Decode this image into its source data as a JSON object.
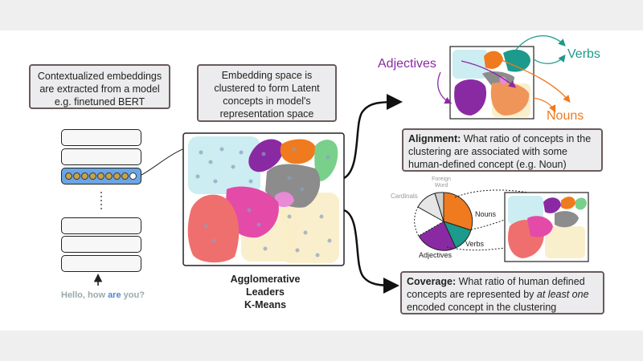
{
  "left_box": {
    "line1": "Contextualized embeddings",
    "line2": "are extracted from a model",
    "line3": "e.g. finetuned BERT"
  },
  "input": {
    "before": "Hello, how ",
    "highlight": "are",
    "after": " you?"
  },
  "middle_box": {
    "line1": "Embedding space is",
    "line2": "clustered to form Latent",
    "line3": "concepts in model's",
    "line4": "representation space"
  },
  "algorithms": [
    "Agglomerative",
    "Leaders",
    "K-Means"
  ],
  "top_labels": {
    "adjectives": "Adjectives",
    "verbs": "Verbs",
    "nouns": "Nouns"
  },
  "alignment": {
    "title": "Alignment:",
    "text": " What ratio of concepts in the clustering are associated with some human-defined concept (e.g. Noun)"
  },
  "pie": {
    "labels": [
      "Foreign Word",
      "Cardinals",
      "Nouns",
      "Verbs",
      "Adjectives"
    ]
  },
  "coverage": {
    "title": "Coverage:",
    "text1": " What ratio of human defined concepts are represented by ",
    "emph": "at least one",
    "text2": " encoded concept in the clustering"
  },
  "colors": {
    "adjectives": "#8a2aa3",
    "verbs": "#1c9a8c",
    "nouns": "#f07a1e",
    "pink": "#e44aa8",
    "salmon": "#ef6f6f",
    "gray": "#8c8c8c",
    "cyan": "#bfe9ee",
    "cream": "#f9edc8",
    "green": "#79d08b"
  }
}
